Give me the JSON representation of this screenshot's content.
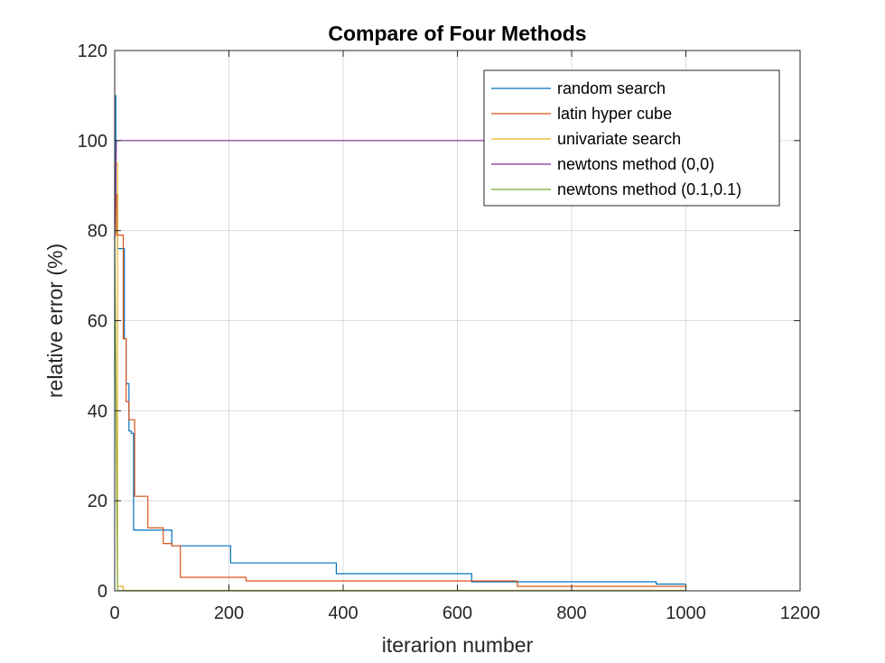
{
  "chart_data": {
    "type": "line",
    "title": "Compare of Four Methods",
    "xlabel": "iterarion number",
    "ylabel": "relative error (%)",
    "xlim": [
      0,
      1200
    ],
    "ylim": [
      0,
      120
    ],
    "xticks": [
      0,
      200,
      400,
      600,
      800,
      1000,
      1200
    ],
    "yticks": [
      0,
      20,
      40,
      60,
      80,
      100,
      120
    ],
    "grid": true,
    "legend_position": "top-right",
    "series": [
      {
        "name": "random search",
        "color": "#0072BD",
        "step": true,
        "points": [
          [
            0,
            110
          ],
          [
            2,
            88
          ],
          [
            5,
            76
          ],
          [
            17,
            56
          ],
          [
            20,
            46
          ],
          [
            25,
            35.5
          ],
          [
            29,
            35
          ],
          [
            33,
            13.5
          ],
          [
            80,
            13.5
          ],
          [
            100,
            10
          ],
          [
            200,
            10
          ],
          [
            203,
            6.2
          ],
          [
            385,
            6.2
          ],
          [
            388,
            3.8
          ],
          [
            620,
            3.8
          ],
          [
            625,
            2
          ],
          [
            945,
            2
          ],
          [
            948,
            1.5
          ],
          [
            1000,
            1.5
          ]
        ]
      },
      {
        "name": "latin hyper cube",
        "color": "#D95319",
        "step": true,
        "points": [
          [
            0,
            88
          ],
          [
            3,
            79
          ],
          [
            15,
            56
          ],
          [
            20,
            42
          ],
          [
            25,
            38
          ],
          [
            35,
            21
          ],
          [
            57,
            21
          ],
          [
            58,
            14
          ],
          [
            80,
            14
          ],
          [
            85,
            10.5
          ],
          [
            100,
            10
          ],
          [
            115,
            3
          ],
          [
            228,
            3
          ],
          [
            230,
            2.2
          ],
          [
            700,
            2.2
          ],
          [
            705,
            1
          ],
          [
            1000,
            1
          ]
        ]
      },
      {
        "name": "univariate search",
        "color": "#EDB120",
        "step": true,
        "points": [
          [
            0,
            95
          ],
          [
            5,
            1
          ],
          [
            14,
            1
          ],
          [
            15,
            0.1
          ],
          [
            1000,
            0.1
          ]
        ]
      },
      {
        "name": "newtons method (0,0)",
        "color": "#7E2F8E",
        "step": false,
        "points": [
          [
            0,
            78
          ],
          [
            3,
            100
          ],
          [
            1000,
            100
          ]
        ]
      },
      {
        "name": "newtons method (0.1,0.1)",
        "color": "#77AC30",
        "step": false,
        "points": [
          [
            0,
            80
          ],
          [
            5,
            0.3
          ],
          [
            6,
            0.05
          ],
          [
            1000,
            0.05
          ]
        ]
      }
    ]
  }
}
